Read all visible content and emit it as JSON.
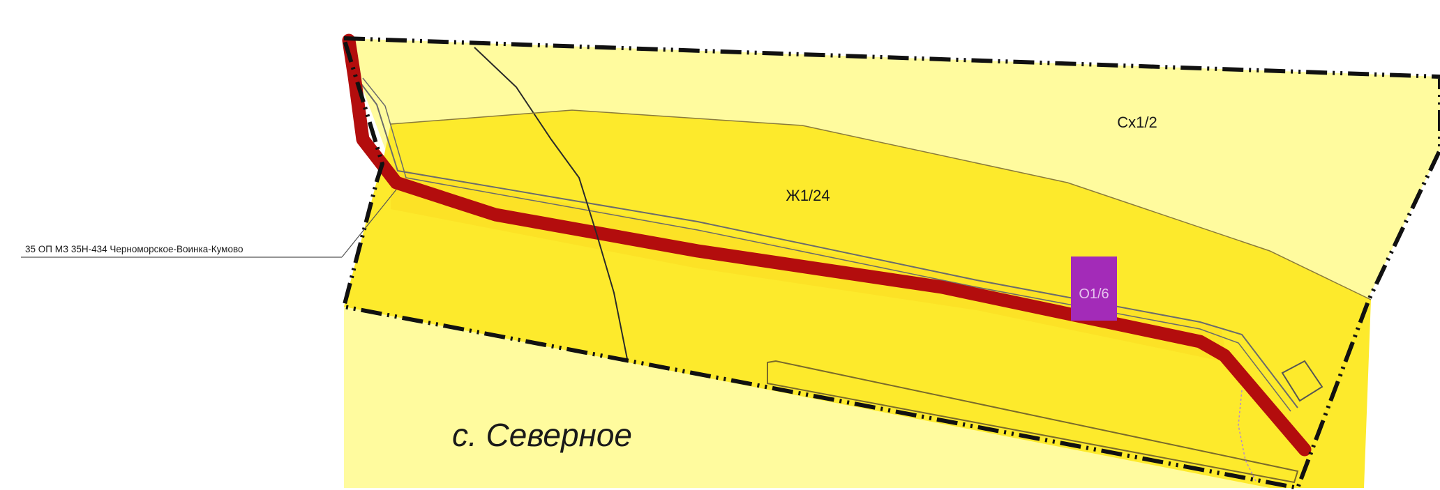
{
  "map": {
    "zones": {
      "agricultural": {
        "code": "Сх1/2",
        "color": "#fffb9e"
      },
      "residential": {
        "code": "Ж1/24",
        "color": "#fdea2c"
      },
      "public": {
        "code": "О1/6",
        "color": "#a32bb8"
      }
    },
    "road": {
      "name": "35 ОП МЗ 35Н-434 Черноморское-Воинка-Кумово",
      "color": "#b30d0d"
    },
    "boundary_color": "#111111",
    "settlement": {
      "name": "с. Северное"
    }
  }
}
